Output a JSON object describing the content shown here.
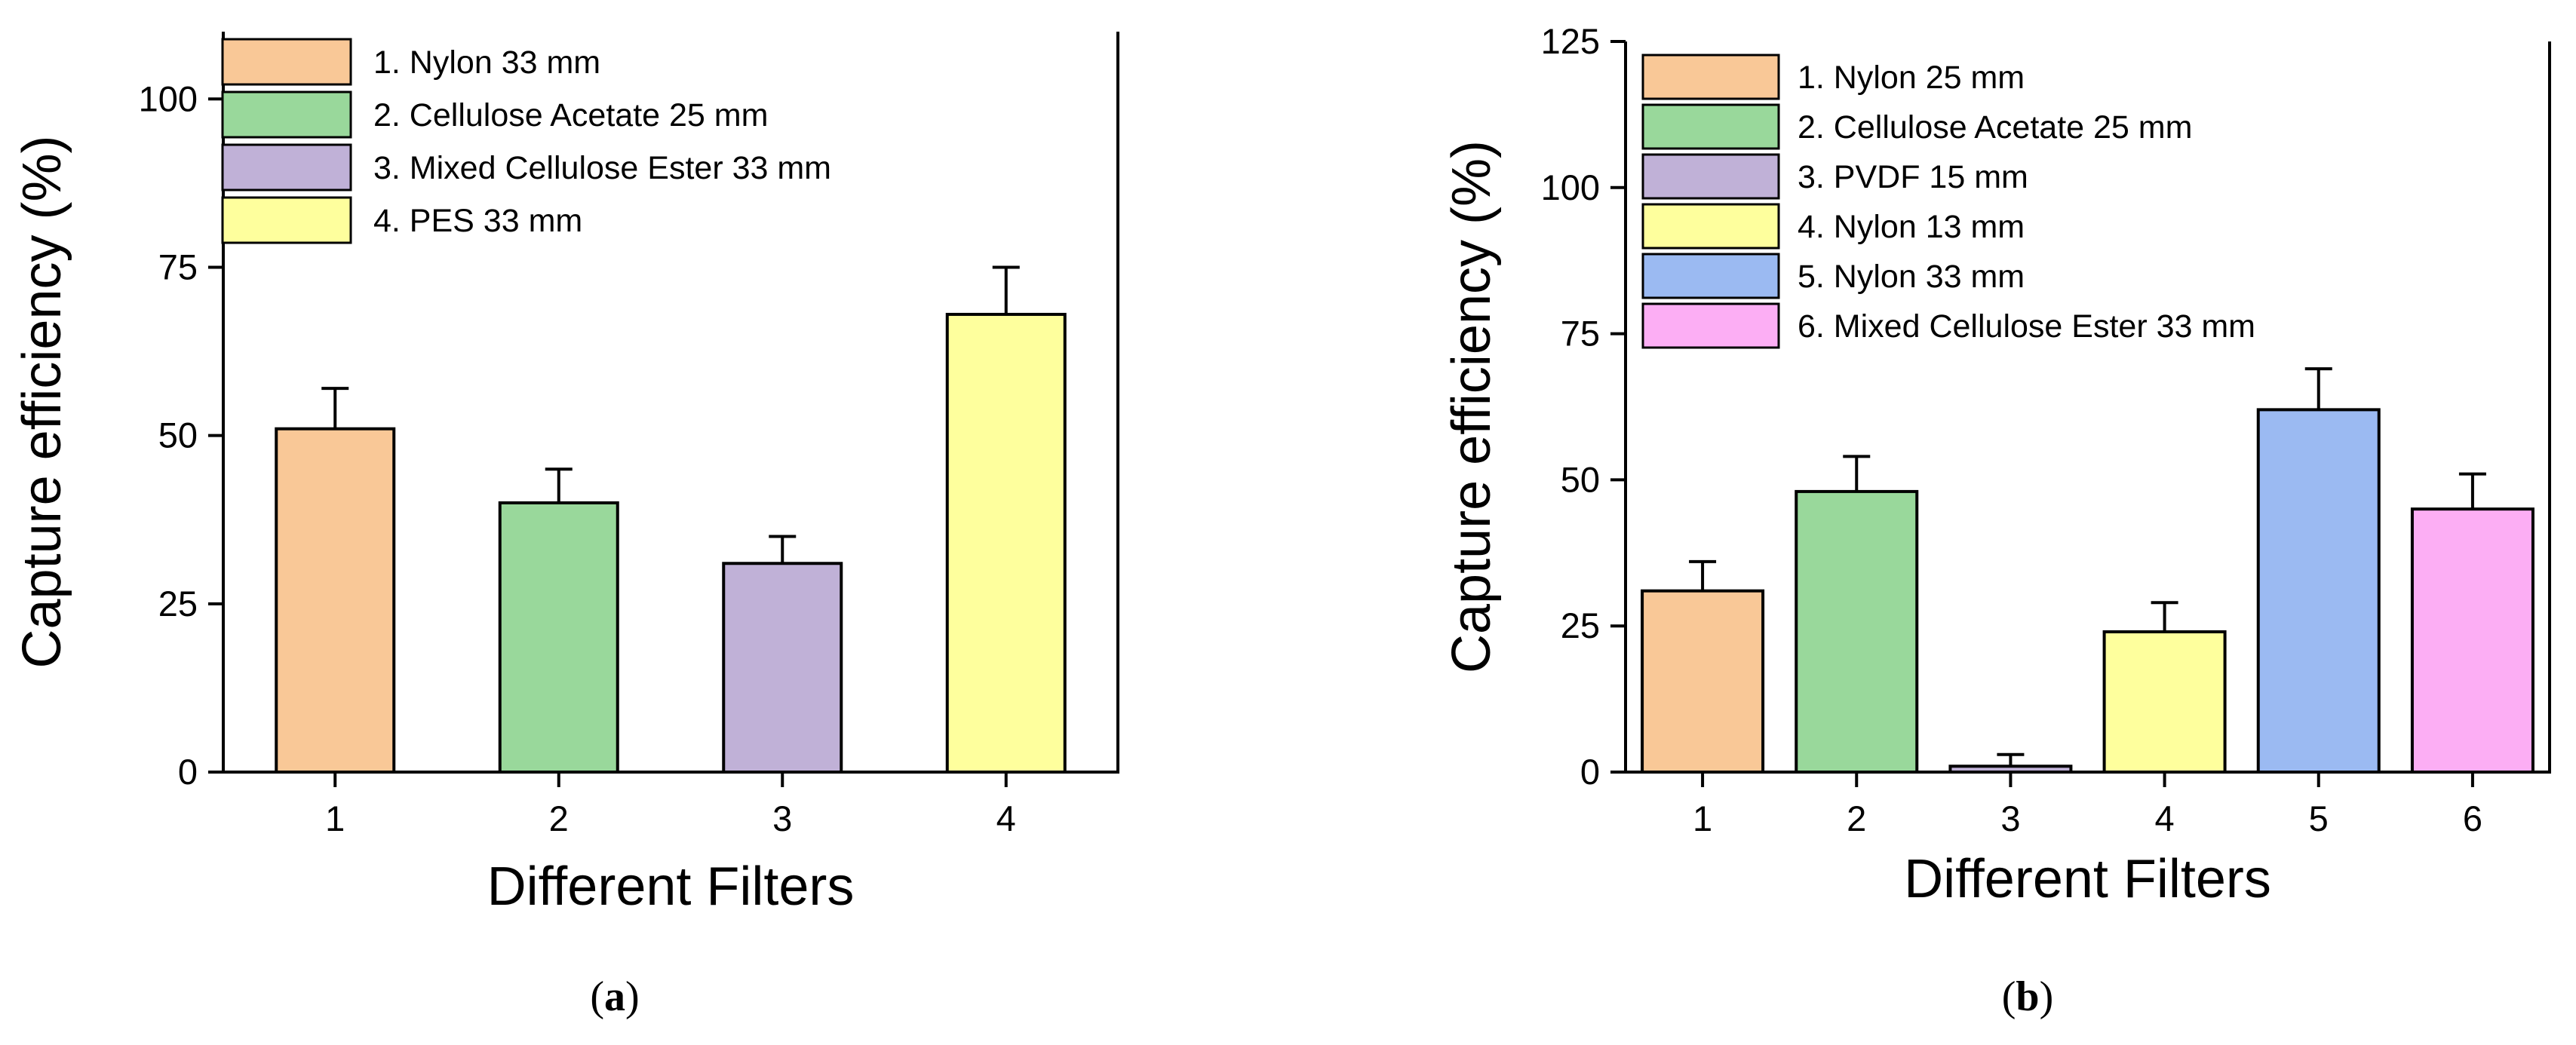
{
  "chart_data": [
    {
      "type": "bar",
      "xlabel": "Different Filters",
      "ylabel": "Capture efficiency (%)",
      "ylim": [
        0,
        110
      ],
      "yticks": [
        0,
        25,
        50,
        75,
        100
      ],
      "categories": [
        "1",
        "2",
        "3",
        "4"
      ],
      "values": [
        51,
        40,
        31,
        68
      ],
      "errors": [
        6,
        5,
        4,
        7
      ],
      "colors": [
        "#f9c897",
        "#99d89b",
        "#c0b1d7",
        "#feff9d"
      ],
      "legend": [
        "1. Nylon 33 mm",
        "2. Cellulose Acetate 25 mm",
        "3. Mixed Cellulose Ester 33 mm",
        "4. PES 33 mm"
      ],
      "legend_position": "top-left",
      "caption_open": "(",
      "caption_letter": "a",
      "caption_close": ")"
    },
    {
      "type": "bar",
      "xlabel": "Different Filters",
      "ylabel": "Capture efficiency (%)",
      "ylim": [
        0,
        125
      ],
      "yticks": [
        0,
        25,
        50,
        75,
        100,
        125
      ],
      "categories": [
        "1",
        "2",
        "3",
        "4",
        "5",
        "6"
      ],
      "values": [
        31,
        48,
        1,
        24,
        62,
        45
      ],
      "errors": [
        5,
        6,
        2,
        5,
        7,
        6
      ],
      "colors": [
        "#f9c897",
        "#99d89b",
        "#c0b1d7",
        "#feff9d",
        "#9bbaf2",
        "#fcaef4"
      ],
      "legend": [
        "1. Nylon 25 mm",
        "2. Cellulose Acetate 25 mm",
        "3. PVDF 15 mm",
        "4. Nylon 13 mm",
        "5. Nylon 33 mm",
        "6. Mixed Cellulose Ester 33 mm"
      ],
      "legend_position": "top-left",
      "caption_open": "(",
      "caption_letter": "b",
      "caption_close": ")"
    }
  ]
}
